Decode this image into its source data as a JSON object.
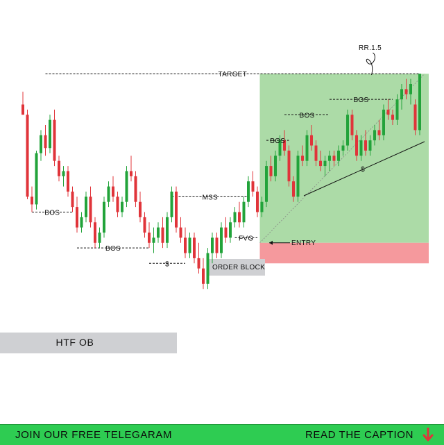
{
  "chart_data": {
    "type": "candlestick",
    "title": "",
    "xlabel": "",
    "ylabel": "",
    "grid": false,
    "ylim": [
      0,
      100
    ],
    "candles": [
      {
        "o": 92,
        "h": 97,
        "l": 88,
        "c": 88
      },
      {
        "o": 88,
        "h": 90,
        "l": 55,
        "c": 56
      },
      {
        "o": 56,
        "h": 60,
        "l": 50,
        "c": 53
      },
      {
        "o": 53,
        "h": 74,
        "l": 51,
        "c": 73
      },
      {
        "o": 73,
        "h": 82,
        "l": 70,
        "c": 80
      },
      {
        "o": 80,
        "h": 84,
        "l": 72,
        "c": 75
      },
      {
        "o": 75,
        "h": 88,
        "l": 73,
        "c": 86
      },
      {
        "o": 86,
        "h": 90,
        "l": 68,
        "c": 70
      },
      {
        "o": 70,
        "h": 72,
        "l": 62,
        "c": 64
      },
      {
        "o": 64,
        "h": 68,
        "l": 60,
        "c": 66
      },
      {
        "o": 66,
        "h": 68,
        "l": 56,
        "c": 58
      },
      {
        "o": 58,
        "h": 60,
        "l": 50,
        "c": 52
      },
      {
        "o": 52,
        "h": 56,
        "l": 42,
        "c": 44
      },
      {
        "o": 44,
        "h": 50,
        "l": 42,
        "c": 48
      },
      {
        "o": 48,
        "h": 58,
        "l": 46,
        "c": 56
      },
      {
        "o": 56,
        "h": 60,
        "l": 44,
        "c": 46
      },
      {
        "o": 46,
        "h": 48,
        "l": 36,
        "c": 38
      },
      {
        "o": 38,
        "h": 44,
        "l": 36,
        "c": 42
      },
      {
        "o": 42,
        "h": 56,
        "l": 40,
        "c": 54
      },
      {
        "o": 54,
        "h": 62,
        "l": 52,
        "c": 60
      },
      {
        "o": 60,
        "h": 64,
        "l": 54,
        "c": 56
      },
      {
        "o": 56,
        "h": 58,
        "l": 48,
        "c": 50
      },
      {
        "o": 50,
        "h": 56,
        "l": 48,
        "c": 54
      },
      {
        "o": 54,
        "h": 68,
        "l": 52,
        "c": 66
      },
      {
        "o": 66,
        "h": 72,
        "l": 62,
        "c": 64
      },
      {
        "o": 64,
        "h": 66,
        "l": 52,
        "c": 54
      },
      {
        "o": 54,
        "h": 58,
        "l": 46,
        "c": 48
      },
      {
        "o": 48,
        "h": 50,
        "l": 40,
        "c": 42
      },
      {
        "o": 42,
        "h": 46,
        "l": 36,
        "c": 38
      },
      {
        "o": 38,
        "h": 44,
        "l": 34,
        "c": 40
      },
      {
        "o": 40,
        "h": 46,
        "l": 38,
        "c": 44
      },
      {
        "o": 44,
        "h": 48,
        "l": 36,
        "c": 38
      },
      {
        "o": 38,
        "h": 50,
        "l": 36,
        "c": 48
      },
      {
        "o": 48,
        "h": 60,
        "l": 46,
        "c": 58
      },
      {
        "o": 58,
        "h": 60,
        "l": 42,
        "c": 44
      },
      {
        "o": 44,
        "h": 48,
        "l": 38,
        "c": 40
      },
      {
        "o": 40,
        "h": 44,
        "l": 32,
        "c": 34
      },
      {
        "o": 34,
        "h": 42,
        "l": 32,
        "c": 40
      },
      {
        "o": 40,
        "h": 42,
        "l": 30,
        "c": 32
      },
      {
        "o": 32,
        "h": 38,
        "l": 26,
        "c": 28
      },
      {
        "o": 28,
        "h": 32,
        "l": 20,
        "c": 22
      },
      {
        "o": 22,
        "h": 36,
        "l": 20,
        "c": 34
      },
      {
        "o": 34,
        "h": 42,
        "l": 30,
        "c": 40
      },
      {
        "o": 40,
        "h": 42,
        "l": 32,
        "c": 34
      },
      {
        "o": 34,
        "h": 46,
        "l": 32,
        "c": 44
      },
      {
        "o": 44,
        "h": 48,
        "l": 38,
        "c": 40
      },
      {
        "o": 40,
        "h": 48,
        "l": 38,
        "c": 46
      },
      {
        "o": 46,
        "h": 52,
        "l": 44,
        "c": 50
      },
      {
        "o": 50,
        "h": 54,
        "l": 44,
        "c": 46
      },
      {
        "o": 46,
        "h": 56,
        "l": 44,
        "c": 54
      },
      {
        "o": 54,
        "h": 64,
        "l": 52,
        "c": 62
      },
      {
        "o": 62,
        "h": 66,
        "l": 56,
        "c": 58
      },
      {
        "o": 58,
        "h": 60,
        "l": 48,
        "c": 50
      },
      {
        "o": 50,
        "h": 56,
        "l": 48,
        "c": 54
      },
      {
        "o": 54,
        "h": 70,
        "l": 52,
        "c": 68
      },
      {
        "o": 68,
        "h": 72,
        "l": 62,
        "c": 64
      },
      {
        "o": 64,
        "h": 74,
        "l": 62,
        "c": 72
      },
      {
        "o": 72,
        "h": 80,
        "l": 70,
        "c": 78
      },
      {
        "o": 78,
        "h": 82,
        "l": 72,
        "c": 74
      },
      {
        "o": 74,
        "h": 76,
        "l": 60,
        "c": 62
      },
      {
        "o": 62,
        "h": 64,
        "l": 54,
        "c": 56
      },
      {
        "o": 56,
        "h": 74,
        "l": 54,
        "c": 72
      },
      {
        "o": 72,
        "h": 76,
        "l": 68,
        "c": 70
      },
      {
        "o": 70,
        "h": 82,
        "l": 68,
        "c": 80
      },
      {
        "o": 80,
        "h": 84,
        "l": 74,
        "c": 76
      },
      {
        "o": 76,
        "h": 78,
        "l": 68,
        "c": 70
      },
      {
        "o": 70,
        "h": 74,
        "l": 66,
        "c": 68
      },
      {
        "o": 68,
        "h": 72,
        "l": 64,
        "c": 70
      },
      {
        "o": 70,
        "h": 74,
        "l": 66,
        "c": 72
      },
      {
        "o": 72,
        "h": 74,
        "l": 68,
        "c": 70
      },
      {
        "o": 70,
        "h": 76,
        "l": 68,
        "c": 74
      },
      {
        "o": 74,
        "h": 78,
        "l": 72,
        "c": 76
      },
      {
        "o": 76,
        "h": 90,
        "l": 74,
        "c": 88
      },
      {
        "o": 88,
        "h": 90,
        "l": 78,
        "c": 80
      },
      {
        "o": 80,
        "h": 82,
        "l": 70,
        "c": 72
      },
      {
        "o": 72,
        "h": 80,
        "l": 70,
        "c": 78
      },
      {
        "o": 78,
        "h": 82,
        "l": 72,
        "c": 74
      },
      {
        "o": 74,
        "h": 80,
        "l": 72,
        "c": 78
      },
      {
        "o": 78,
        "h": 84,
        "l": 76,
        "c": 82
      },
      {
        "o": 82,
        "h": 86,
        "l": 78,
        "c": 80
      },
      {
        "o": 80,
        "h": 92,
        "l": 78,
        "c": 90
      },
      {
        "o": 90,
        "h": 94,
        "l": 86,
        "c": 88
      },
      {
        "o": 88,
        "h": 90,
        "l": 84,
        "c": 86
      },
      {
        "o": 86,
        "h": 96,
        "l": 84,
        "c": 94
      },
      {
        "o": 94,
        "h": 100,
        "l": 90,
        "c": 98
      },
      {
        "o": 98,
        "h": 102,
        "l": 94,
        "c": 96
      },
      {
        "o": 96,
        "h": 102,
        "l": 92,
        "c": 100
      },
      {
        "o": 92,
        "h": 94,
        "l": 80,
        "c": 82
      },
      {
        "o": 82,
        "h": 104,
        "l": 80,
        "c": 104
      }
    ],
    "zones": {
      "htf_ob": {
        "label": "HTF OB",
        "x_start": 0,
        "x_end": 40,
        "y_top": 20,
        "y_bottom": 14
      },
      "order_block": {
        "label": "ORDER BLOCK",
        "x_start": 46,
        "x_end": 53,
        "y_top": 39,
        "y_bottom": 33
      },
      "target_zone": {
        "x_start": 53,
        "x_end": 90,
        "y_top": 104,
        "y_bottom": 38
      },
      "stop_zone": {
        "x_start": 53,
        "x_end": 90,
        "y_top": 38,
        "y_bottom": 30
      }
    },
    "annotations": [
      {
        "label": "TARGET",
        "x1": 5,
        "x2": 88,
        "y": 104
      },
      {
        "label": "RR.1.5",
        "x": 77,
        "y": 108
      },
      {
        "label": "BOS",
        "x1": 2,
        "x2": 11,
        "y": 50
      },
      {
        "label": "BOS",
        "x1": 12,
        "x2": 28,
        "y": 36
      },
      {
        "label": "$",
        "x1": 28,
        "x2": 36,
        "y": 30
      },
      {
        "label": "MSS",
        "x1": 33,
        "x2": 50,
        "y": 56
      },
      {
        "label": "FVG",
        "x1": 47,
        "x2": 52,
        "y": 40
      },
      {
        "label": "BOS",
        "x1": 54,
        "x2": 59,
        "y": 78
      },
      {
        "label": "BOS",
        "x1": 58,
        "x2": 68,
        "y": 88
      },
      {
        "label": "BOS",
        "x1": 68,
        "x2": 82,
        "y": 94
      },
      {
        "label": "ENTRY",
        "x": 54,
        "y": 38
      },
      {
        "label": "$",
        "x1": 62,
        "x2": 90,
        "y": 66
      }
    ],
    "colors": {
      "bull": "#22a33a",
      "bear": "#e0343a",
      "target": "#a8d9a2",
      "stop": "#f5999d",
      "zone": "#cfd0d3"
    }
  },
  "footer": {
    "left_text": "JOIN OUR FREE TELEGARAM",
    "right_text": "READ THE CAPTION",
    "arrow_icon": "down-arrow-icon",
    "bg": "#2ecc52"
  }
}
